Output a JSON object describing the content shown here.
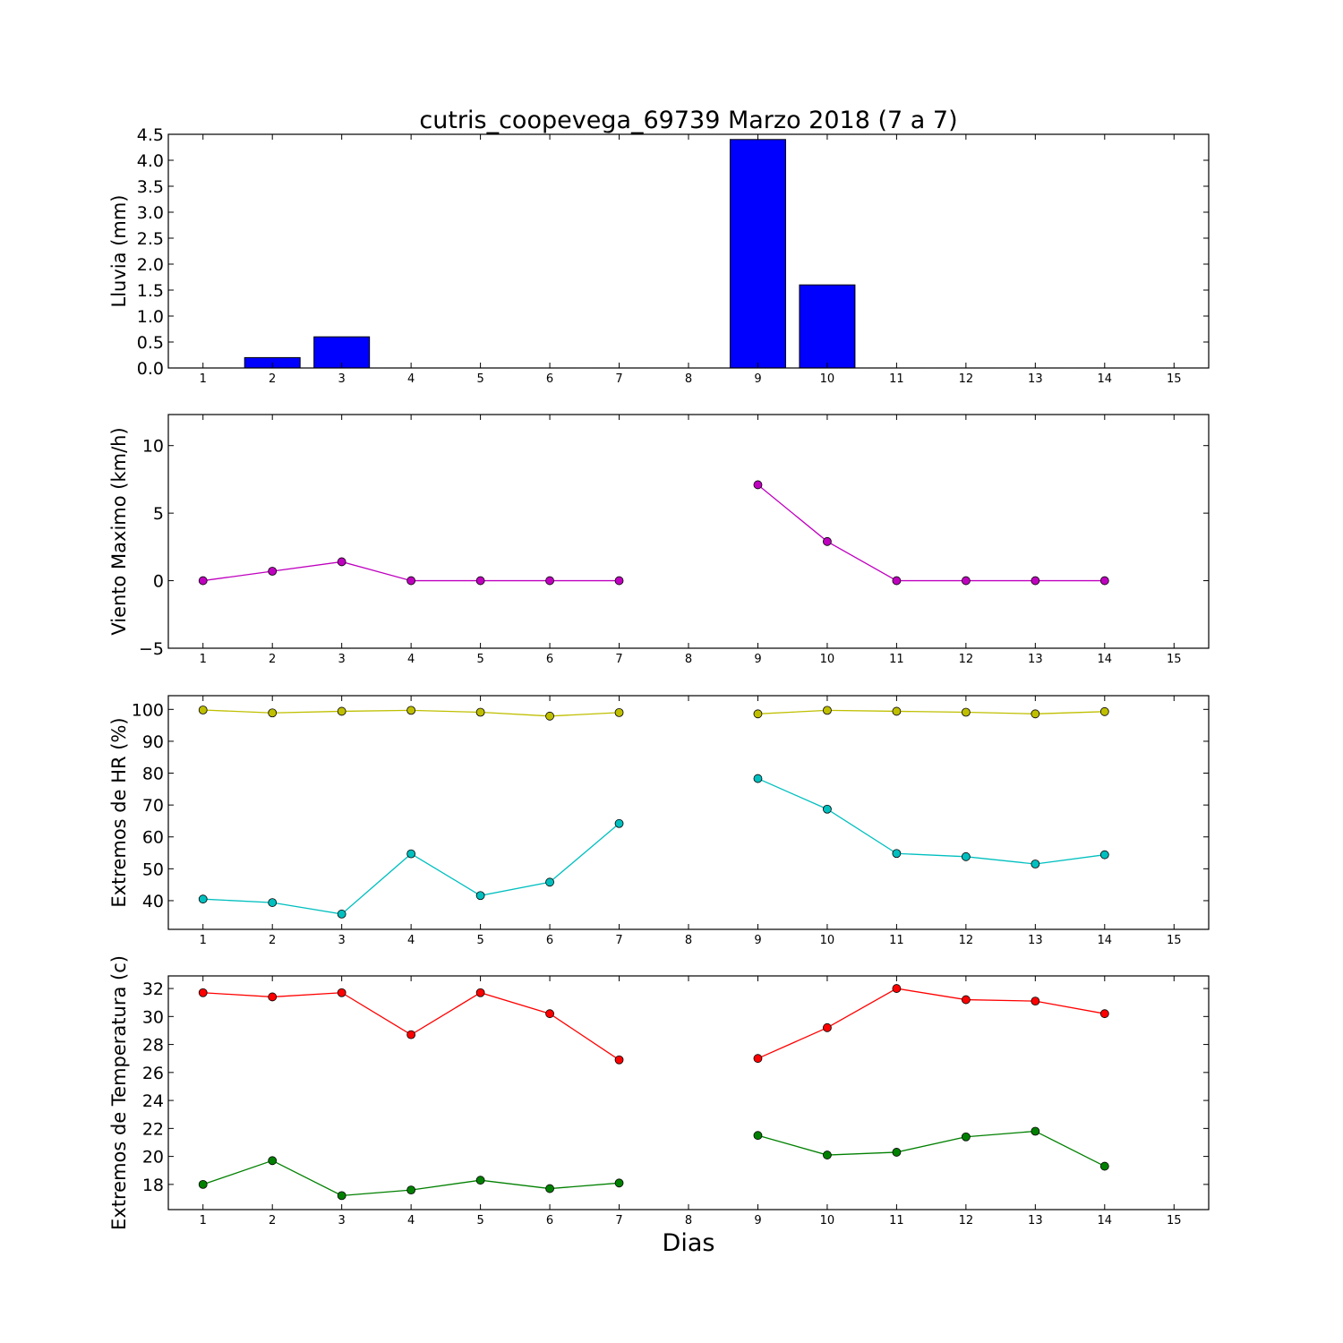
{
  "figure": {
    "title": "cutris_coopevega_69739 Marzo 2018  (7 a 7)",
    "xlabel": "Dias"
  },
  "colors": {
    "rain_bar": "#0000ff",
    "wind_line": "#bf00bf",
    "hr_max_line": "#bfbf00",
    "hr_min_line": "#00bfbf",
    "temp_max_line": "#ff0000",
    "temp_min_line": "#008000",
    "axes": "#000000",
    "background": "#ffffff"
  },
  "chart_data": [
    {
      "type": "bar",
      "name": "rain",
      "ylabel": "Lluvia (mm)",
      "xlim": [
        0.5,
        15.5
      ],
      "ylim": [
        0,
        4.5
      ],
      "xticks": [
        1,
        2,
        3,
        4,
        5,
        6,
        7,
        8,
        9,
        10,
        11,
        12,
        13,
        14,
        15
      ],
      "yticks": [
        0.0,
        0.5,
        1.0,
        1.5,
        2.0,
        2.5,
        3.0,
        3.5,
        4.0,
        4.5
      ],
      "ytick_labels": [
        "0.0",
        "0.5",
        "1.0",
        "1.5",
        "2.0",
        "2.5",
        "3.0",
        "3.5",
        "4.0",
        "4.5"
      ],
      "bar_width": 0.8,
      "series": [
        {
          "x": [
            1,
            2,
            3,
            4,
            5,
            6,
            7,
            9,
            10,
            11,
            12,
            13,
            14
          ],
          "values": [
            0.0,
            0.2,
            0.6,
            0.0,
            0.0,
            0.0,
            0.0,
            4.4,
            1.6,
            0.0,
            0.0,
            0.0,
            0.0
          ],
          "color": "#0000ff"
        }
      ],
      "grid": false
    },
    {
      "type": "line",
      "name": "wind",
      "ylabel": "Viento Maximo (km/h)",
      "xlim": [
        0.5,
        15.5
      ],
      "ylim": [
        -5,
        12.3
      ],
      "xticks": [
        1,
        2,
        3,
        4,
        5,
        6,
        7,
        8,
        9,
        10,
        11,
        12,
        13,
        14,
        15
      ],
      "yticks": [
        -5,
        0,
        5,
        10
      ],
      "ytick_labels": [
        "−5",
        "0",
        "5",
        "10"
      ],
      "series": [
        {
          "x": [
            1,
            2,
            3,
            4,
            5,
            6,
            7,
            9,
            10,
            11,
            12,
            13,
            14
          ],
          "values": [
            0.0,
            0.7,
            1.4,
            0.0,
            0.0,
            0.0,
            0.0,
            7.1,
            2.9,
            0.0,
            0.0,
            0.0,
            0.0
          ],
          "segments": [
            [
              0,
              6
            ],
            [
              7,
              12
            ]
          ],
          "color": "#bf00bf"
        }
      ],
      "grid": false
    },
    {
      "type": "line",
      "name": "humidity",
      "ylabel": "Extremos de HR (%)",
      "xlim": [
        0.5,
        15.5
      ],
      "ylim": [
        31,
        104.3
      ],
      "xticks": [
        1,
        2,
        3,
        4,
        5,
        6,
        7,
        8,
        9,
        10,
        11,
        12,
        13,
        14,
        15
      ],
      "yticks": [
        40,
        50,
        60,
        70,
        80,
        90,
        100
      ],
      "ytick_labels": [
        "40",
        "50",
        "60",
        "70",
        "80",
        "90",
        "100"
      ],
      "series": [
        {
          "x": [
            1,
            2,
            3,
            4,
            5,
            6,
            7,
            9,
            10,
            11,
            12,
            13,
            14
          ],
          "values": [
            99.8,
            98.9,
            99.4,
            99.7,
            99.1,
            97.9,
            99.0,
            98.6,
            99.7,
            99.4,
            99.1,
            98.6,
            99.3
          ],
          "segments": [
            [
              0,
              6
            ],
            [
              7,
              12
            ]
          ],
          "color": "#bfbf00"
        },
        {
          "x": [
            1,
            2,
            3,
            4,
            5,
            6,
            7,
            9,
            10,
            11,
            12,
            13,
            14
          ],
          "values": [
            40.5,
            39.4,
            35.8,
            54.7,
            41.6,
            45.8,
            64.2,
            78.3,
            68.7,
            54.8,
            53.8,
            51.5,
            54.4
          ],
          "segments": [
            [
              0,
              6
            ],
            [
              7,
              12
            ]
          ],
          "color": "#00bfbf"
        }
      ],
      "grid": false
    },
    {
      "type": "line",
      "name": "temperature",
      "ylabel": "Extremos de Temperatura (c)",
      "xlim": [
        0.5,
        15.5
      ],
      "ylim": [
        16.2,
        32.9
      ],
      "xticks": [
        1,
        2,
        3,
        4,
        5,
        6,
        7,
        8,
        9,
        10,
        11,
        12,
        13,
        14,
        15
      ],
      "yticks": [
        18,
        20,
        22,
        24,
        26,
        28,
        30,
        32
      ],
      "ytick_labels": [
        "18",
        "20",
        "22",
        "24",
        "26",
        "28",
        "30",
        "32"
      ],
      "series": [
        {
          "x": [
            1,
            2,
            3,
            4,
            5,
            6,
            7,
            9,
            10,
            11,
            12,
            13,
            14
          ],
          "values": [
            31.7,
            31.4,
            31.7,
            28.7,
            31.7,
            30.2,
            26.9,
            27.0,
            29.2,
            32.0,
            31.2,
            31.1,
            30.2
          ],
          "segments": [
            [
              0,
              6
            ],
            [
              7,
              12
            ]
          ],
          "color": "#ff0000"
        },
        {
          "x": [
            1,
            2,
            3,
            4,
            5,
            6,
            7,
            9,
            10,
            11,
            12,
            13,
            14
          ],
          "values": [
            18.0,
            19.7,
            17.2,
            17.6,
            18.3,
            17.7,
            18.1,
            21.5,
            20.1,
            20.3,
            21.4,
            21.8,
            19.3
          ],
          "segments": [
            [
              0,
              6
            ],
            [
              7,
              12
            ]
          ],
          "color": "#008000"
        }
      ],
      "grid": false
    }
  ]
}
